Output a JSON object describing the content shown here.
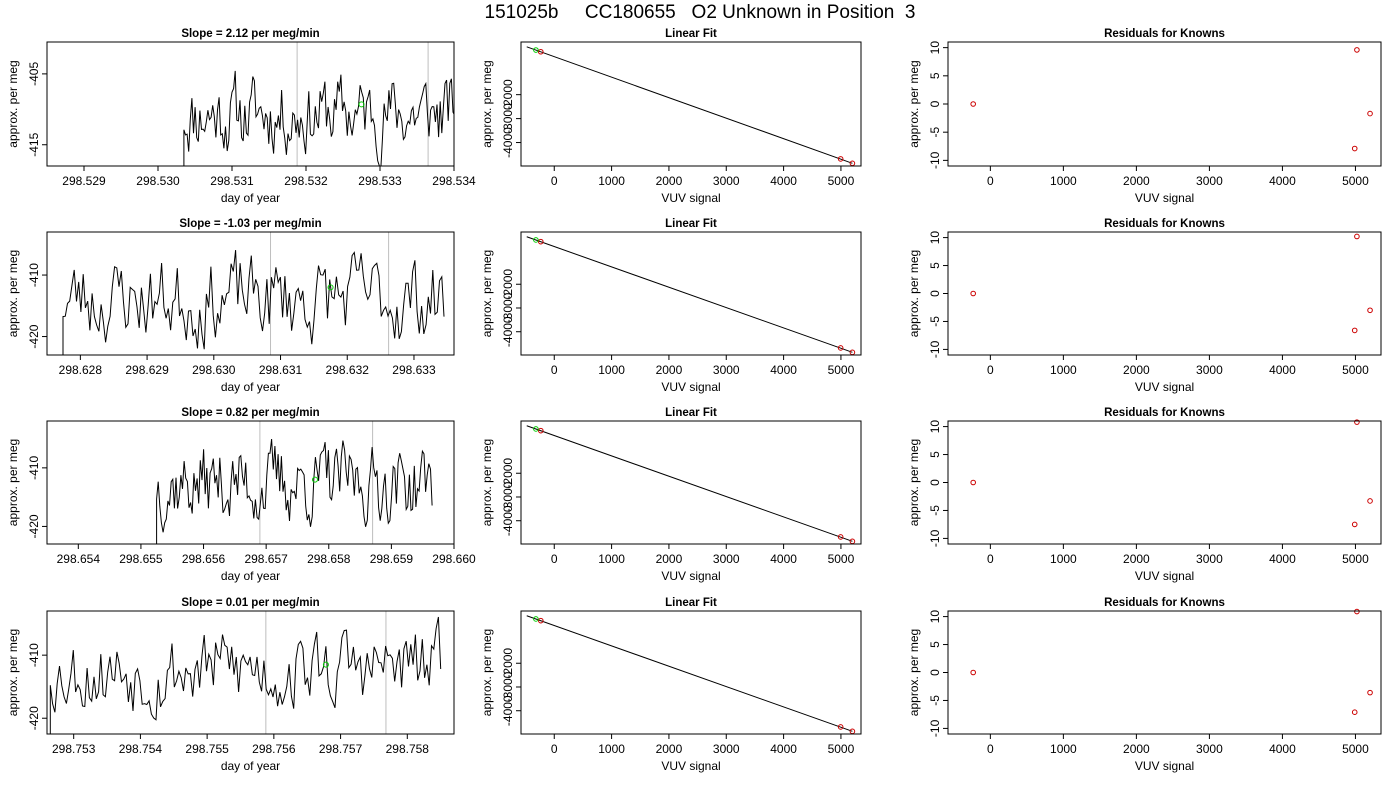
{
  "figure": {
    "title": "151025b     CC180655   O2 Unknown in Position  3"
  },
  "colors": {
    "line": "#000000",
    "vline": "#bebebe",
    "unknown_marker": "#00cc00",
    "known_marker": "#cc0000",
    "axis": "#000000"
  },
  "chart_data": [
    {
      "type": "line",
      "row": 0,
      "col": 0,
      "title": "Slope =  2.12  per meg/min",
      "xlabel": "day of year",
      "ylabel": "approx. per meg",
      "xlim": [
        298.5285,
        298.534
      ],
      "ylim": [
        -418.0,
        -400.5
      ],
      "xticks": [
        298.529,
        298.53,
        298.531,
        298.532,
        298.533,
        298.534
      ],
      "xtick_labels": [
        "298.529",
        "298.530",
        "298.531",
        "298.532",
        "298.533",
        "298.534"
      ],
      "yticks": [
        -405,
        -415
      ],
      "ytick_labels": [
        "-405",
        "-415"
      ],
      "seed": 11,
      "x_start": 298.53035,
      "x_end": 298.53403,
      "y_mean": -410.6,
      "y_amp": 5.2,
      "vlines": [
        298.53188,
        298.53365
      ],
      "unknown_point": {
        "x": 298.53275,
        "y": -409.3
      }
    },
    {
      "type": "scatter",
      "row": 0,
      "col": 1,
      "title": "Linear Fit",
      "xlabel": "VUV signal",
      "ylabel": "approx. per meg",
      "xlim": [
        -580,
        5350
      ],
      "ylim": [
        -4980,
        200
      ],
      "xticks": [
        0,
        1000,
        2000,
        3000,
        4000,
        5000
      ],
      "xtick_labels": [
        "0",
        "1000",
        "2000",
        "3000",
        "4000",
        "5000"
      ],
      "yticks": [
        -2000,
        -3000,
        -4000
      ],
      "ytick_labels": [
        "-2000",
        "-3000",
        "-4000"
      ],
      "fit_line": {
        "x": [
          -480,
          5200
        ],
        "y": [
          -1,
          -4867
        ]
      },
      "knowns": {
        "x": [
          -235,
          4995,
          5200
        ],
        "y": [
          -207,
          -4683,
          -4867
        ]
      },
      "unknown": {
        "x": [
          -320
        ],
        "y": [
          -135
        ]
      }
    },
    {
      "type": "scatter",
      "row": 0,
      "col": 2,
      "title": "Residuals for Knowns",
      "xlabel": "VUV signal",
      "ylabel": "approx. per meg",
      "xlim": [
        -580,
        5350
      ],
      "ylim": [
        -11.0,
        11.0
      ],
      "xticks": [
        0,
        1000,
        2000,
        3000,
        4000,
        5000
      ],
      "xtick_labels": [
        "0",
        "1000",
        "2000",
        "3000",
        "4000",
        "5000"
      ],
      "yticks": [
        10,
        5,
        0,
        -5,
        -10
      ],
      "ytick_labels": [
        "10",
        "5",
        "0",
        "-5",
        "-10"
      ],
      "points": {
        "x": [
          -235,
          5020,
          4990,
          5200
        ],
        "y": [
          0,
          9.6,
          -7.9,
          -1.7
        ]
      }
    },
    {
      "type": "line",
      "row": 1,
      "col": 0,
      "title": "Slope =  -1.03  per meg/min",
      "xlabel": "day of year",
      "ylabel": "approx. per meg",
      "xlim": [
        298.6275,
        298.6336
      ],
      "ylim": [
        -423.0,
        -403.0
      ],
      "xticks": [
        298.628,
        298.629,
        298.63,
        298.631,
        298.632,
        298.633
      ],
      "xtick_labels": [
        "298.628",
        "298.629",
        "298.630",
        "298.631",
        "298.632",
        "298.633"
      ],
      "yticks": [
        -410,
        -420
      ],
      "ytick_labels": [
        "-410",
        "-420"
      ],
      "seed": 23,
      "x_start": 298.62774,
      "x_end": 298.63345,
      "y_mean": -413.8,
      "y_amp": 6.8,
      "vlines": [
        298.63085,
        298.63262
      ],
      "unknown_point": {
        "x": 298.63175,
        "y": -412.0
      }
    },
    {
      "type": "scatter",
      "row": 1,
      "col": 1,
      "title": "Linear Fit",
      "xlabel": "VUV signal",
      "ylabel": "approx. per meg",
      "xlim": [
        -580,
        5350
      ],
      "ylim": [
        -4980,
        200
      ],
      "xticks": [
        0,
        1000,
        2000,
        3000,
        4000,
        5000
      ],
      "xtick_labels": [
        "0",
        "1000",
        "2000",
        "3000",
        "4000",
        "5000"
      ],
      "yticks": [
        -2000,
        -3000,
        -4000
      ],
      "ytick_labels": [
        "-2000",
        "-3000",
        "-4000"
      ],
      "fit_line": {
        "x": [
          -480,
          5200
        ],
        "y": [
          -1,
          -4867
        ]
      },
      "knowns": {
        "x": [
          -235,
          4995,
          5200
        ],
        "y": [
          -207,
          -4683,
          -4867
        ]
      },
      "unknown": {
        "x": [
          -320
        ],
        "y": [
          -135
        ]
      }
    },
    {
      "type": "scatter",
      "row": 1,
      "col": 2,
      "title": "Residuals for Knowns",
      "xlabel": "VUV signal",
      "ylabel": "approx. per meg",
      "xlim": [
        -580,
        5350
      ],
      "ylim": [
        -11.0,
        11.0
      ],
      "xticks": [
        0,
        1000,
        2000,
        3000,
        4000,
        5000
      ],
      "xtick_labels": [
        "0",
        "1000",
        "2000",
        "3000",
        "4000",
        "5000"
      ],
      "yticks": [
        10,
        5,
        0,
        -5,
        -10
      ],
      "ytick_labels": [
        "10",
        "5",
        "0",
        "-5",
        "-10"
      ],
      "points": {
        "x": [
          -235,
          5020,
          4990,
          5200
        ],
        "y": [
          0,
          10.2,
          -6.6,
          -3.0
        ]
      }
    },
    {
      "type": "line",
      "row": 2,
      "col": 0,
      "title": "Slope =  0.82  per meg/min",
      "xlabel": "day of year",
      "ylabel": "approx. per meg",
      "xlim": [
        298.6535,
        298.66
      ],
      "ylim": [
        -423.0,
        -402.0
      ],
      "xticks": [
        298.654,
        298.655,
        298.656,
        298.657,
        298.658,
        298.659,
        298.66
      ],
      "xtick_labels": [
        "298.654",
        "298.655",
        "298.656",
        "298.657",
        "298.658",
        "298.659",
        "298.660"
      ],
      "yticks": [
        -410,
        -420
      ],
      "ytick_labels": [
        "-410",
        "-420"
      ],
      "seed": 37,
      "x_start": 298.65525,
      "x_end": 298.65965,
      "y_mean": -412.6,
      "y_amp": 6.4,
      "vlines": [
        298.6569,
        298.6587
      ],
      "unknown_point": {
        "x": 298.65778,
        "y": -412.0
      }
    },
    {
      "type": "scatter",
      "row": 2,
      "col": 1,
      "title": "Linear Fit",
      "xlabel": "VUV signal",
      "ylabel": "approx. per meg",
      "xlim": [
        -580,
        5350
      ],
      "ylim": [
        -4980,
        200
      ],
      "xticks": [
        0,
        1000,
        2000,
        3000,
        4000,
        5000
      ],
      "xtick_labels": [
        "0",
        "1000",
        "2000",
        "3000",
        "4000",
        "5000"
      ],
      "yticks": [
        -2000,
        -3000,
        -4000
      ],
      "ytick_labels": [
        "-2000",
        "-3000",
        "-4000"
      ],
      "fit_line": {
        "x": [
          -480,
          5200
        ],
        "y": [
          -1,
          -4867
        ]
      },
      "knowns": {
        "x": [
          -235,
          4995,
          5200
        ],
        "y": [
          -207,
          -4683,
          -4867
        ]
      },
      "unknown": {
        "x": [
          -320
        ],
        "y": [
          -135
        ]
      }
    },
    {
      "type": "scatter",
      "row": 2,
      "col": 2,
      "title": "Residuals for Knowns",
      "xlabel": "VUV signal",
      "ylabel": "approx. per meg",
      "xlim": [
        -580,
        5350
      ],
      "ylim": [
        -11.0,
        11.0
      ],
      "xticks": [
        0,
        1000,
        2000,
        3000,
        4000,
        5000
      ],
      "xtick_labels": [
        "0",
        "1000",
        "2000",
        "3000",
        "4000",
        "5000"
      ],
      "yticks": [
        10,
        5,
        0,
        -5,
        -10
      ],
      "ytick_labels": [
        "10",
        "5",
        "0",
        "-5",
        "-10"
      ],
      "points": {
        "x": [
          -235,
          5020,
          4990,
          5200
        ],
        "y": [
          0,
          10.8,
          -7.5,
          -3.3
        ]
      }
    },
    {
      "type": "line",
      "row": 3,
      "col": 0,
      "title": "Slope =  0.01  per meg/min",
      "xlabel": "day of year",
      "ylabel": "approx. per meg",
      "xlim": [
        298.7526,
        298.7587
      ],
      "ylim": [
        -422.5,
        -403.0
      ],
      "xticks": [
        298.753,
        298.754,
        298.755,
        298.756,
        298.757,
        298.758
      ],
      "xtick_labels": [
        "298.753",
        "298.754",
        "298.755",
        "298.756",
        "298.757",
        "298.758"
      ],
      "yticks": [
        -410,
        -420
      ],
      "ytick_labels": [
        "-410",
        "-420"
      ],
      "seed": 53,
      "x_start": 298.75265,
      "x_end": 298.7585,
      "y_mean": -412.2,
      "y_amp": 6.2,
      "vlines": [
        298.75588,
        298.75768
      ],
      "unknown_point": {
        "x": 298.75678,
        "y": -411.5
      }
    },
    {
      "type": "scatter",
      "row": 3,
      "col": 1,
      "title": "Linear Fit",
      "xlabel": "VUV signal",
      "ylabel": "approx. per meg",
      "xlim": [
        -580,
        5350
      ],
      "ylim": [
        -4980,
        200
      ],
      "xticks": [
        0,
        1000,
        2000,
        3000,
        4000,
        5000
      ],
      "xtick_labels": [
        "0",
        "1000",
        "2000",
        "3000",
        "4000",
        "5000"
      ],
      "yticks": [
        -2000,
        -3000,
        -4000
      ],
      "ytick_labels": [
        "-2000",
        "-3000",
        "-4000"
      ],
      "fit_line": {
        "x": [
          -480,
          5200
        ],
        "y": [
          -1,
          -4867
        ]
      },
      "knowns": {
        "x": [
          -235,
          4995,
          5200
        ],
        "y": [
          -207,
          -4683,
          -4867
        ]
      },
      "unknown": {
        "x": [
          -320
        ],
        "y": [
          -135
        ]
      }
    },
    {
      "type": "scatter",
      "row": 3,
      "col": 2,
      "title": "Residuals for Knowns",
      "xlabel": "VUV signal",
      "ylabel": "approx. per meg",
      "xlim": [
        -580,
        5350
      ],
      "ylim": [
        -11.0,
        11.0
      ],
      "xticks": [
        0,
        1000,
        2000,
        3000,
        4000,
        5000
      ],
      "xtick_labels": [
        "0",
        "1000",
        "2000",
        "3000",
        "4000",
        "5000"
      ],
      "yticks": [
        10,
        5,
        0,
        -5,
        -10
      ],
      "ytick_labels": [
        "10",
        "5",
        "0",
        "-5",
        "-10"
      ],
      "points": {
        "x": [
          -235,
          5020,
          4990,
          5200
        ],
        "y": [
          0,
          10.9,
          -7.1,
          -3.6
        ]
      }
    }
  ]
}
